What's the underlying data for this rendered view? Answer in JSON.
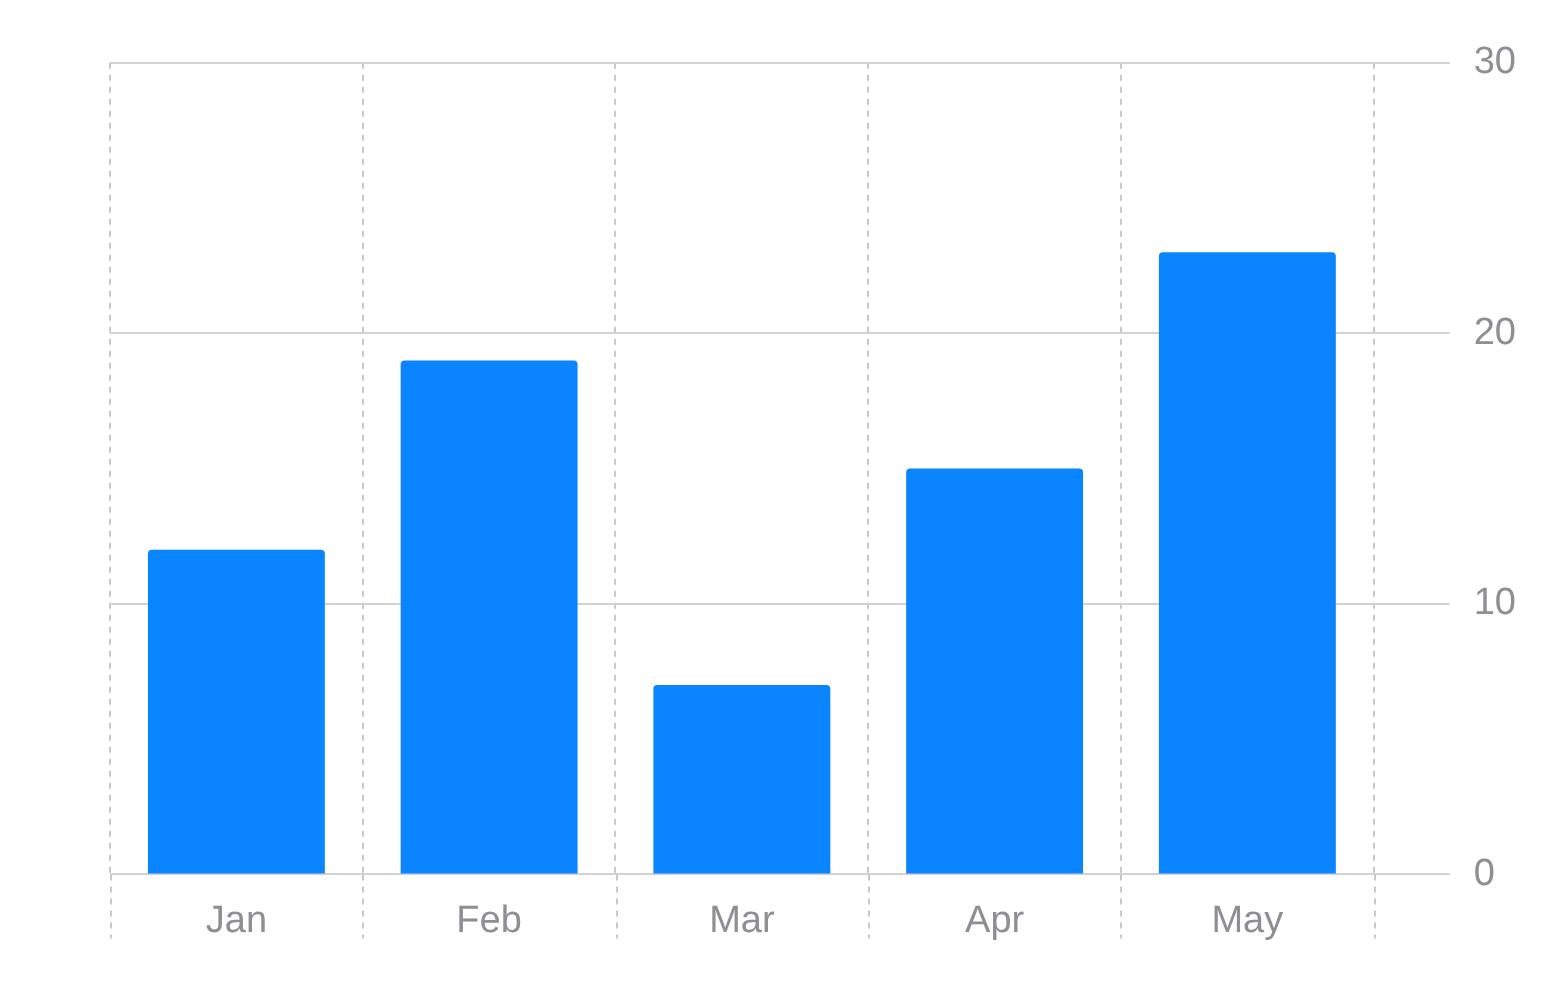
{
  "chart_data": {
    "type": "bar",
    "categories": [
      "Jan",
      "Feb",
      "Mar",
      "Apr",
      "May"
    ],
    "values": [
      12,
      19,
      7,
      15,
      23
    ],
    "color": "#0a84ff",
    "ylim": [
      0,
      30
    ],
    "yticks": [
      0,
      10,
      20,
      30
    ],
    "grid": true
  }
}
